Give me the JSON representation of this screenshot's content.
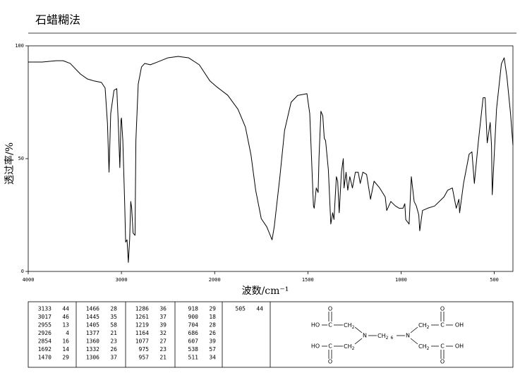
{
  "chart_data": {
    "type": "line",
    "title": "石蜡糊法",
    "xlabel": "波数/cm⁻¹",
    "ylabel": "透过率/%",
    "xlim": [
      4000,
      400
    ],
    "xticks": [
      4000,
      3000,
      2000,
      1500,
      1000,
      500
    ],
    "ylim": [
      0,
      100
    ],
    "yticks": [
      0,
      50,
      100
    ],
    "color": "#000000",
    "x": [
      4000,
      3850,
      3700,
      3625,
      3550,
      3440,
      3365,
      3290,
      3215,
      3175,
      3150,
      3133,
      3115,
      3080,
      3050,
      3035,
      3017,
      3005,
      3000,
      2985,
      2965,
      2955,
      2940,
      2926,
      2912,
      2900,
      2890,
      2875,
      2854,
      2845,
      2820,
      2785,
      2750,
      2690,
      2615,
      2500,
      2390,
      2280,
      2165,
      2050,
      1990,
      1930,
      1875,
      1835,
      1805,
      1780,
      1750,
      1720,
      1692,
      1680,
      1650,
      1625,
      1590,
      1555,
      1505,
      1490,
      1470,
      1466,
      1455,
      1445,
      1440,
      1430,
      1420,
      1412,
      1405,
      1390,
      1377,
      1367,
      1360,
      1347,
      1340,
      1332,
      1320,
      1310,
      1306,
      1295,
      1286,
      1275,
      1261,
      1245,
      1230,
      1219,
      1205,
      1185,
      1164,
      1145,
      1115,
      1085,
      1077,
      1055,
      1030,
      1010,
      990,
      980,
      975,
      957,
      945,
      930,
      918,
      905,
      900,
      885,
      858,
      820,
      770,
      750,
      725,
      704,
      690,
      686,
      665,
      635,
      620,
      607,
      585,
      560,
      549,
      538,
      522,
      515,
      511,
      505,
      488,
      462,
      447,
      432,
      413,
      400
    ],
    "values": [
      92.8,
      92.8,
      93.4,
      93.4,
      92.2,
      87.5,
      85.3,
      84.4,
      83.8,
      81.3,
      65.6,
      44,
      70,
      80.3,
      81,
      67,
      46,
      67,
      68,
      58,
      30,
      13,
      14,
      4,
      14,
      31,
      28,
      17,
      16,
      58,
      83,
      90.6,
      92.2,
      91.6,
      92.8,
      94.7,
      95.3,
      94.7,
      91.6,
      84.4,
      81.9,
      78.1,
      71.9,
      64,
      51.6,
      36,
      23.4,
      19.7,
      14,
      20,
      42,
      62.5,
      75,
      78,
      78.8,
      70,
      29,
      28,
      37,
      35,
      51,
      71,
      69,
      59,
      58,
      45,
      21,
      26,
      23,
      42,
      40,
      26,
      44,
      50,
      37,
      44,
      36,
      42,
      37,
      44,
      44,
      39,
      44,
      43,
      32,
      40,
      37,
      33,
      27,
      31,
      29,
      28,
      28,
      30,
      23,
      21,
      42,
      31,
      29,
      25,
      18,
      27,
      28,
      29,
      33,
      36,
      37,
      28,
      32,
      26,
      39,
      52,
      53,
      39,
      58,
      77,
      77,
      57,
      66,
      56,
      34,
      44,
      72,
      92,
      94.7,
      86,
      70,
      56
    ]
  },
  "peak_table": [
    [
      3133,
      44
    ],
    [
      3017,
      46
    ],
    [
      2955,
      13
    ],
    [
      2926,
      4
    ],
    [
      2854,
      16
    ],
    [
      1692,
      14
    ],
    [
      1470,
      29
    ],
    [
      1466,
      28
    ],
    [
      1445,
      35
    ],
    [
      1405,
      58
    ],
    [
      1377,
      21
    ],
    [
      1360,
      23
    ],
    [
      1332,
      26
    ],
    [
      1306,
      37
    ],
    [
      1286,
      36
    ],
    [
      1261,
      37
    ],
    [
      1219,
      39
    ],
    [
      1164,
      32
    ],
    [
      1077,
      27
    ],
    [
      975,
      23
    ],
    [
      957,
      21
    ],
    [
      918,
      29
    ],
    [
      900,
      18
    ],
    [
      704,
      28
    ],
    [
      686,
      26
    ],
    [
      607,
      39
    ],
    [
      538,
      57
    ],
    [
      511,
      34
    ],
    [
      505,
      44
    ]
  ],
  "structure": {
    "labels": [
      "O",
      "HO",
      "C",
      "CH",
      "2",
      "N",
      "CH",
      "2",
      "6",
      "N",
      "CH",
      "2",
      "C",
      "OH",
      "O",
      "HO",
      "C",
      "CH",
      "2",
      "O",
      "CH",
      "2",
      "C",
      "OH",
      "O"
    ]
  }
}
